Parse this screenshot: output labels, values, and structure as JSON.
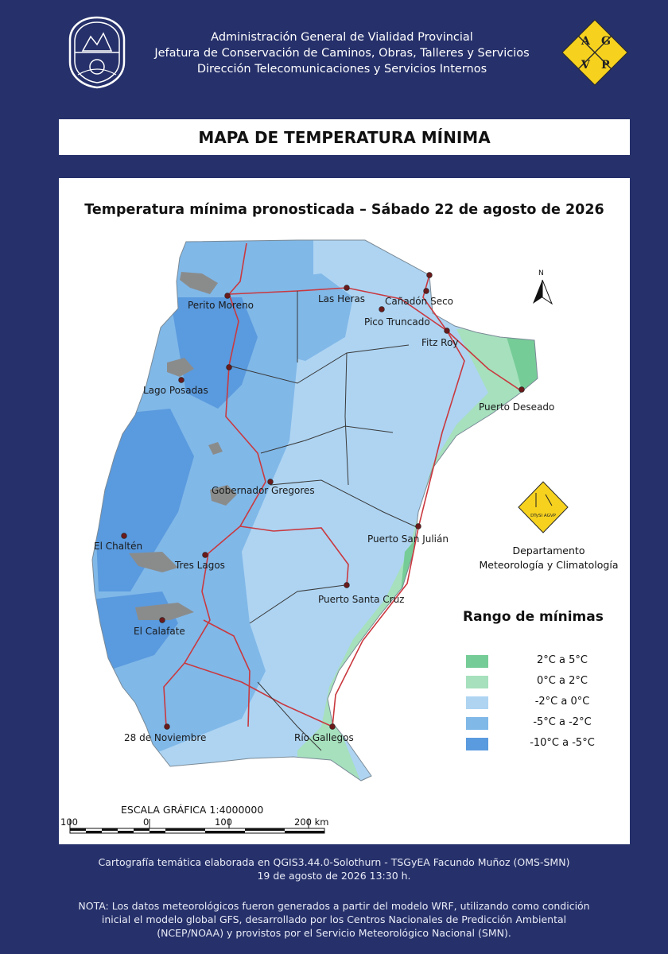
{
  "header": {
    "line1": "Administración General de Vialidad Provincial",
    "line2": "Jefatura de Conservación de Caminos, Obras, Talleres y Servicios",
    "line3": "Dirección Telecomunicaciones y Servicios Internos",
    "logo_letters": [
      "A",
      "G",
      "V",
      "P"
    ],
    "seal_icon": "provincial-seal-icon"
  },
  "page_title": "MAPA DE TEMPERATURA MÍNIMA",
  "map": {
    "title": "Temperatura mínima pronosticada – Sábado 22 de agosto de 2026",
    "north_label": "N",
    "cities": [
      "Perito Moreno",
      "Las Heras",
      "Cañadón Seco",
      "Pico Truncado",
      "Fitz Roy",
      "Lago Posadas",
      "Puerto Deseado",
      "Gobernador Gregores",
      "El Chaltén",
      "Puerto San Julián",
      "Tres Lagos",
      "Puerto Santa Cruz",
      "El Calafate",
      "28 de Noviembre",
      "Río Gallegos"
    ],
    "department": {
      "logo_text": "DTySI AGVP",
      "line1": "Departamento",
      "line2": "Meteorología y Climatología"
    }
  },
  "legend": {
    "title": "Rango de mínimas",
    "items": [
      {
        "label": "2°C a 5°C",
        "color": "#76cc97"
      },
      {
        "label": "0°C a 2°C",
        "color": "#a6e0bd"
      },
      {
        "label": "-2°C a 0°C",
        "color": "#aed4f2"
      },
      {
        "label": "-5°C a -2°C",
        "color": "#80b8e8"
      },
      {
        "label": "-10°C a -5°C",
        "color": "#5a9ade"
      }
    ]
  },
  "scale": {
    "title": "ESCALA GRÁFICA 1:4000000",
    "labels": [
      "100",
      "0",
      "100",
      "200 km"
    ]
  },
  "footer": {
    "credit": "Cartografía temática elaborada en QGIS3.44.0-Solothurn - TSGyEA Facundo Muñoz (OMS-SMN)",
    "date": "19 de agosto de 2026 13:30 h.",
    "note1": "NOTA: Los datos meteorológicos fueron generados a partir del modelo WRF, utilizando como condición",
    "note2": "inicial el modelo global GFS, desarrollado por los Centros Nacionales de Predicción Ambiental",
    "note3": "(NCEP/NOAA) y provistos por el Servicio Meteorológico Nacional (SMN)."
  },
  "colors": {
    "background": "#26306a",
    "roads": "#c9393f",
    "lakes": "#8a8c8c",
    "logo_yellow": "#f6d21f"
  }
}
